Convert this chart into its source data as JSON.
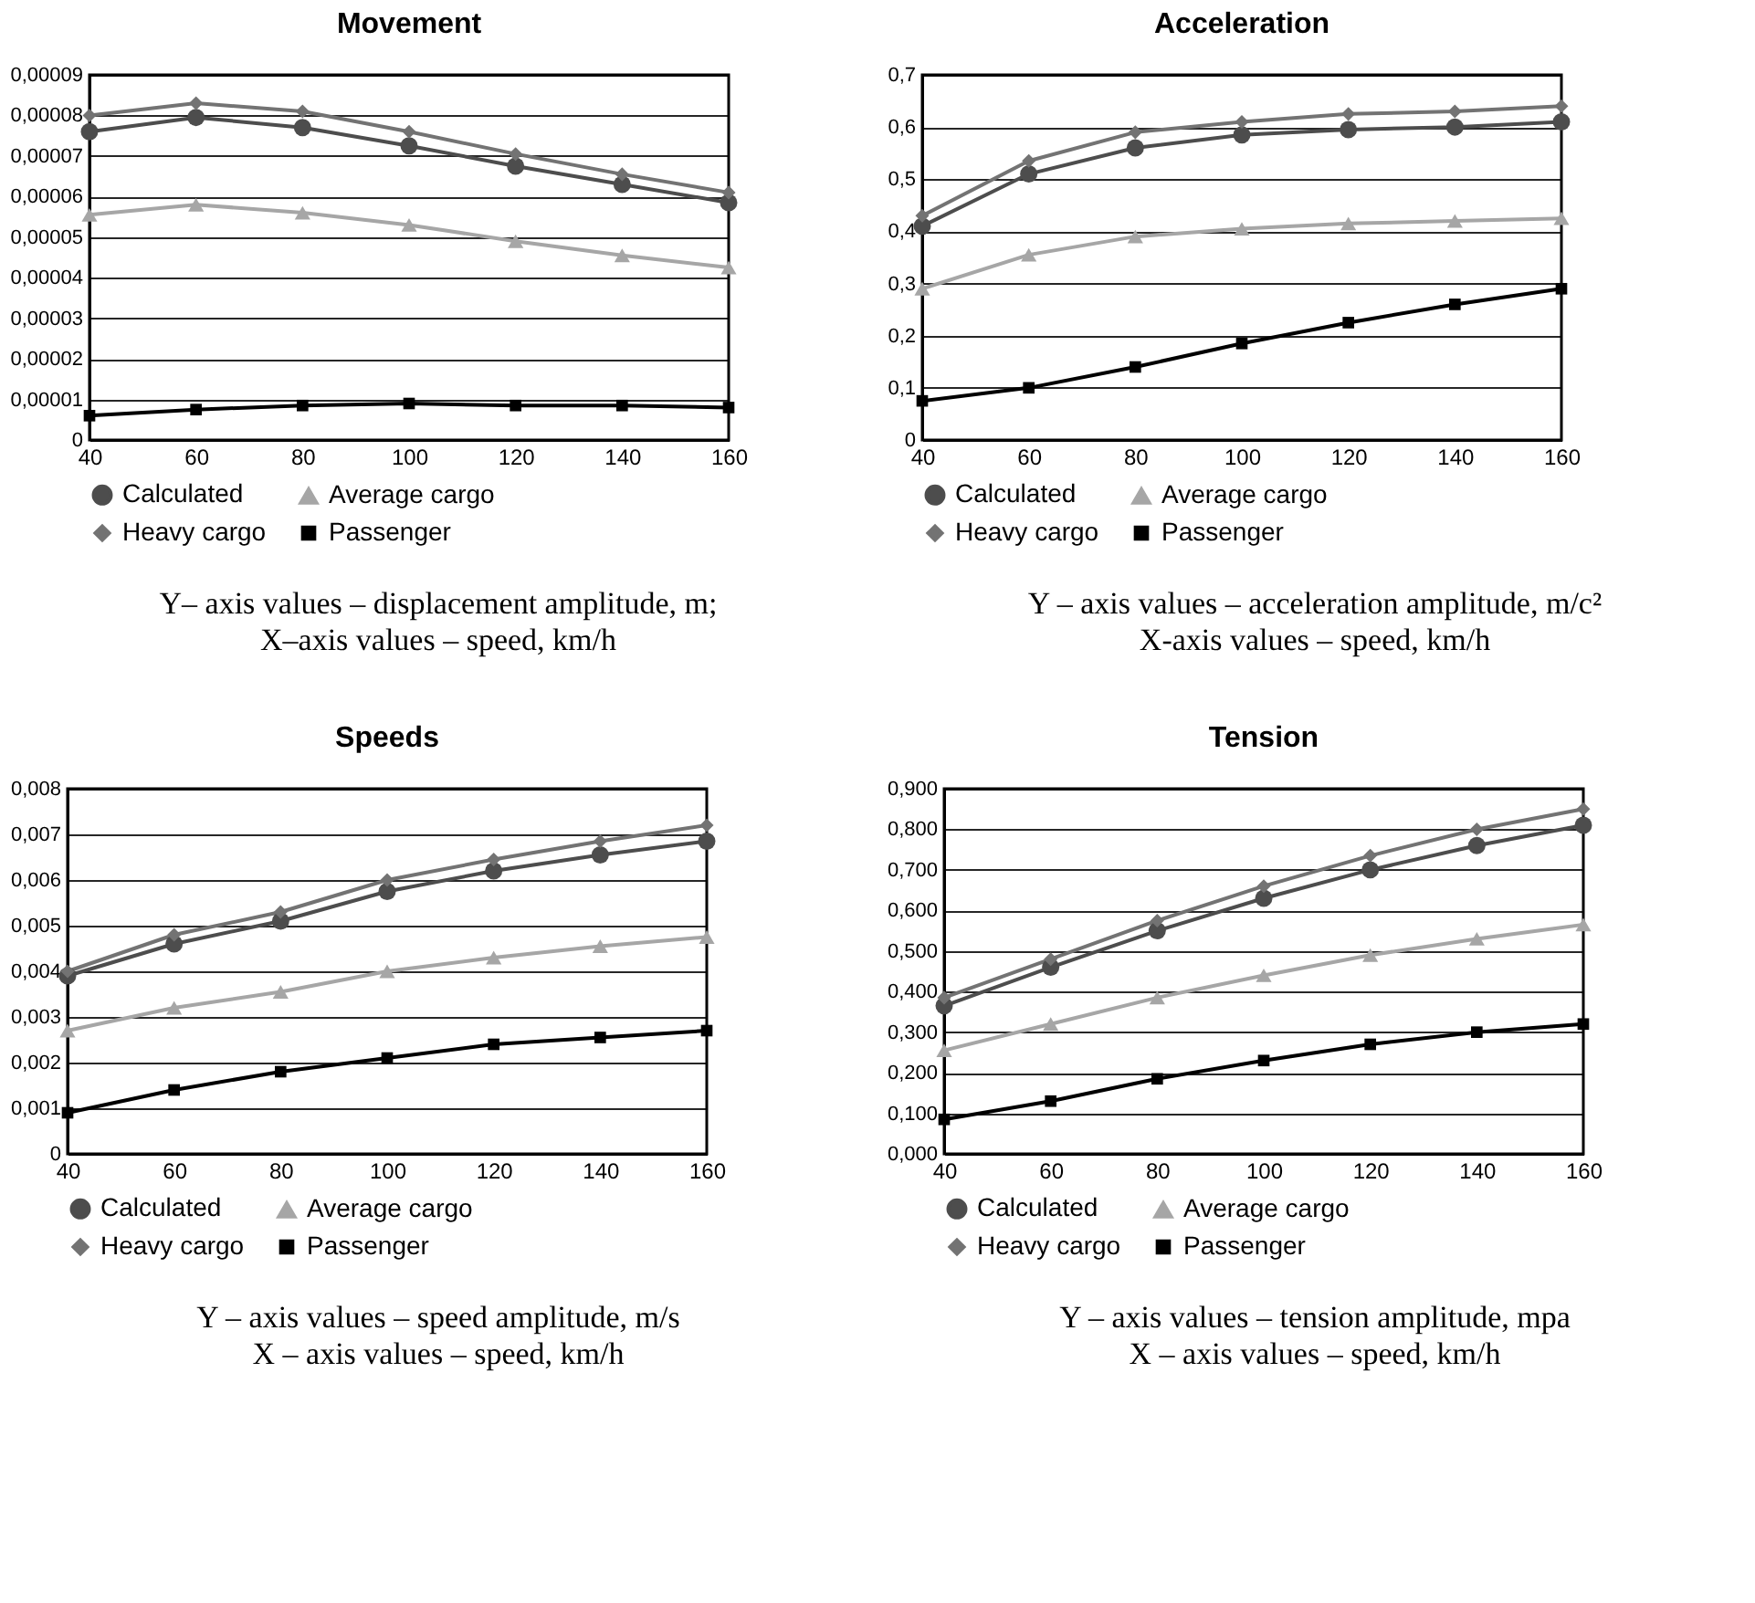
{
  "chart_data": [
    {
      "type": "line",
      "title": "Movement",
      "x": [
        40,
        60,
        80,
        100,
        120,
        140,
        160
      ],
      "xlim": [
        40,
        160
      ],
      "xticks": [
        40,
        60,
        80,
        100,
        120,
        140,
        160
      ],
      "ylim": [
        0,
        9e-05
      ],
      "yticks": [
        {
          "value": 0,
          "label": "0"
        },
        {
          "value": 1e-05,
          "label": "0,00001"
        },
        {
          "value": 2e-05,
          "label": "0,00002"
        },
        {
          "value": 3e-05,
          "label": "0,00003"
        },
        {
          "value": 4e-05,
          "label": "0,00004"
        },
        {
          "value": 5e-05,
          "label": "0,00005"
        },
        {
          "value": 6e-05,
          "label": "0,00006"
        },
        {
          "value": 7e-05,
          "label": "0,00007"
        },
        {
          "value": 8e-05,
          "label": "0,00008"
        },
        {
          "value": 9e-05,
          "label": "0,00009"
        }
      ],
      "grid": "y",
      "legend": "bottom",
      "annotations": [
        "Y– axis values – displacement amplitude, m;",
        "X–axis values – speed, km/h"
      ],
      "series": [
        {
          "name": "Calculated",
          "color": "#4d4d4d",
          "marker": "circle",
          "values": [
            7.6e-05,
            7.95e-05,
            7.7e-05,
            7.25e-05,
            6.75e-05,
            6.3e-05,
            5.85e-05
          ]
        },
        {
          "name": "Average cargo",
          "color": "#a6a6a6",
          "marker": "triangle",
          "values": [
            5.55e-05,
            5.8e-05,
            5.6e-05,
            5.3e-05,
            4.9e-05,
            4.55e-05,
            4.25e-05
          ]
        },
        {
          "name": "Heavy cargo",
          "color": "#737373",
          "marker": "diamond",
          "values": [
            8e-05,
            8.3e-05,
            8.1e-05,
            7.6e-05,
            7.05e-05,
            6.55e-05,
            6.1e-05
          ]
        },
        {
          "name": "Passenger",
          "color": "#000000",
          "marker": "square",
          "values": [
            6e-06,
            7.5e-06,
            8.5e-06,
            9e-06,
            8.5e-06,
            8.5e-06,
            8e-06
          ]
        }
      ]
    },
    {
      "type": "line",
      "title": "Acceleration",
      "x": [
        40,
        60,
        80,
        100,
        120,
        140,
        160
      ],
      "xlim": [
        40,
        160
      ],
      "xticks": [
        40,
        60,
        80,
        100,
        120,
        140,
        160
      ],
      "ylim": [
        0,
        0.7
      ],
      "yticks": [
        {
          "value": 0,
          "label": "0"
        },
        {
          "value": 0.1,
          "label": "0,1"
        },
        {
          "value": 0.2,
          "label": "0,2"
        },
        {
          "value": 0.3,
          "label": "0,3"
        },
        {
          "value": 0.4,
          "label": "0,4"
        },
        {
          "value": 0.5,
          "label": "0,5"
        },
        {
          "value": 0.6,
          "label": "0,6"
        },
        {
          "value": 0.7,
          "label": "0,7"
        }
      ],
      "grid": "y",
      "legend": "bottom",
      "annotations": [
        "Y – axis values – acceleration amplitude, m/c²",
        "X-axis values – speed, km/h"
      ],
      "series": [
        {
          "name": "Calculated",
          "color": "#4d4d4d",
          "marker": "circle",
          "values": [
            0.41,
            0.51,
            0.56,
            0.585,
            0.595,
            0.6,
            0.61
          ]
        },
        {
          "name": "Average cargo",
          "color": "#a6a6a6",
          "marker": "triangle",
          "values": [
            0.29,
            0.355,
            0.39,
            0.405,
            0.415,
            0.42,
            0.425
          ]
        },
        {
          "name": "Heavy cargo",
          "color": "#737373",
          "marker": "diamond",
          "values": [
            0.43,
            0.535,
            0.59,
            0.61,
            0.625,
            0.63,
            0.64
          ]
        },
        {
          "name": "Passenger",
          "color": "#000000",
          "marker": "square",
          "values": [
            0.075,
            0.1,
            0.14,
            0.185,
            0.225,
            0.26,
            0.29
          ]
        }
      ]
    },
    {
      "type": "line",
      "title": "Speeds",
      "x": [
        40,
        60,
        80,
        100,
        120,
        140,
        160
      ],
      "xlim": [
        40,
        160
      ],
      "xticks": [
        40,
        60,
        80,
        100,
        120,
        140,
        160
      ],
      "ylim": [
        0,
        0.008
      ],
      "yticks": [
        {
          "value": 0,
          "label": "0"
        },
        {
          "value": 0.001,
          "label": "0,001"
        },
        {
          "value": 0.002,
          "label": "0,002"
        },
        {
          "value": 0.003,
          "label": "0,003"
        },
        {
          "value": 0.004,
          "label": "0,004"
        },
        {
          "value": 0.005,
          "label": "0,005"
        },
        {
          "value": 0.006,
          "label": "0,006"
        },
        {
          "value": 0.007,
          "label": "0,007"
        },
        {
          "value": 0.008,
          "label": "0,008"
        }
      ],
      "grid": "y",
      "legend": "bottom",
      "annotations": [
        "Y – axis values – speed amplitude, m/s",
        "X – axis values – speed, km/h"
      ],
      "series": [
        {
          "name": "Calculated",
          "color": "#4d4d4d",
          "marker": "circle",
          "values": [
            0.0039,
            0.0046,
            0.0051,
            0.00575,
            0.0062,
            0.00655,
            0.00685
          ]
        },
        {
          "name": "Average cargo",
          "color": "#a6a6a6",
          "marker": "triangle",
          "values": [
            0.0027,
            0.0032,
            0.00355,
            0.004,
            0.0043,
            0.00455,
            0.00475
          ]
        },
        {
          "name": "Heavy cargo",
          "color": "#737373",
          "marker": "diamond",
          "values": [
            0.004,
            0.0048,
            0.0053,
            0.006,
            0.00645,
            0.00685,
            0.0072
          ]
        },
        {
          "name": "Passenger",
          "color": "#000000",
          "marker": "square",
          "values": [
            0.0009,
            0.0014,
            0.0018,
            0.0021,
            0.0024,
            0.00255,
            0.0027
          ]
        }
      ]
    },
    {
      "type": "line",
      "title": "Tension",
      "x": [
        40,
        60,
        80,
        100,
        120,
        140,
        160
      ],
      "xlim": [
        40,
        160
      ],
      "xticks": [
        40,
        60,
        80,
        100,
        120,
        140,
        160
      ],
      "ylim": [
        0,
        0.9
      ],
      "yticks": [
        {
          "value": 0,
          "label": "0,000"
        },
        {
          "value": 0.1,
          "label": "0,100"
        },
        {
          "value": 0.2,
          "label": "0,200"
        },
        {
          "value": 0.3,
          "label": "0,300"
        },
        {
          "value": 0.4,
          "label": "0,400"
        },
        {
          "value": 0.5,
          "label": "0,500"
        },
        {
          "value": 0.6,
          "label": "0,600"
        },
        {
          "value": 0.7,
          "label": "0,700"
        },
        {
          "value": 0.8,
          "label": "0,800"
        },
        {
          "value": 0.9,
          "label": "0,900"
        }
      ],
      "grid": "y",
      "legend": "bottom",
      "annotations": [
        "Y – axis values – tension amplitude, mpa",
        "X – axis values – speed, km/h"
      ],
      "series": [
        {
          "name": "Calculated",
          "color": "#4d4d4d",
          "marker": "circle",
          "values": [
            0.365,
            0.46,
            0.55,
            0.63,
            0.7,
            0.76,
            0.81
          ]
        },
        {
          "name": "Average cargo",
          "color": "#a6a6a6",
          "marker": "triangle",
          "values": [
            0.255,
            0.32,
            0.385,
            0.44,
            0.49,
            0.53,
            0.565
          ]
        },
        {
          "name": "Heavy cargo",
          "color": "#737373",
          "marker": "diamond",
          "values": [
            0.385,
            0.48,
            0.575,
            0.66,
            0.735,
            0.8,
            0.85
          ]
        },
        {
          "name": "Passenger",
          "color": "#000000",
          "marker": "square",
          "values": [
            0.085,
            0.13,
            0.185,
            0.23,
            0.27,
            0.3,
            0.32
          ]
        }
      ]
    }
  ]
}
